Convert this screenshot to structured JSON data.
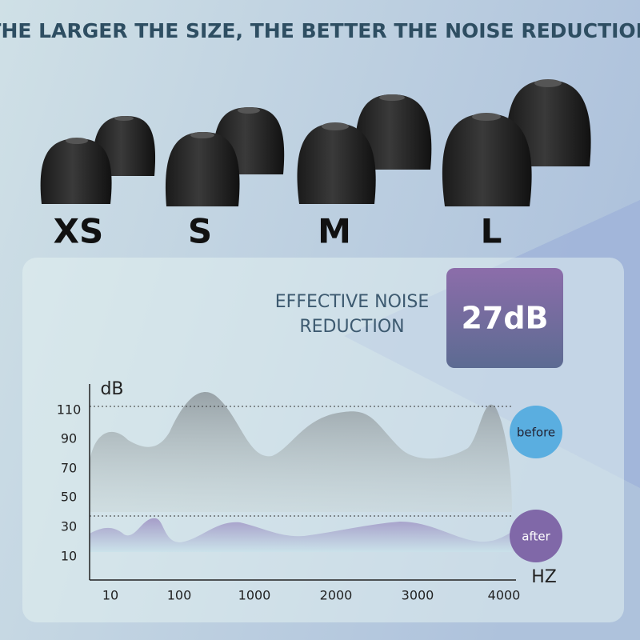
{
  "header": {
    "title": "THE LARGER THE SIZE, THE BETTER THE NOISE REDUCTION"
  },
  "sizes": [
    "XS",
    "S",
    "M",
    "L"
  ],
  "reduction": {
    "label_lines": [
      "EFFECTIVE NOISE",
      "REDUCTION"
    ],
    "value": "27dB"
  },
  "graph": {
    "y_unit": "dB",
    "x_unit": "HZ",
    "y_labels": [
      "110",
      "90",
      "70",
      "50",
      "30",
      "10"
    ],
    "x_labels": [
      "10",
      "100",
      "1000",
      "2000",
      "3000",
      "4000"
    ],
    "before": "before",
    "after": "after"
  }
}
